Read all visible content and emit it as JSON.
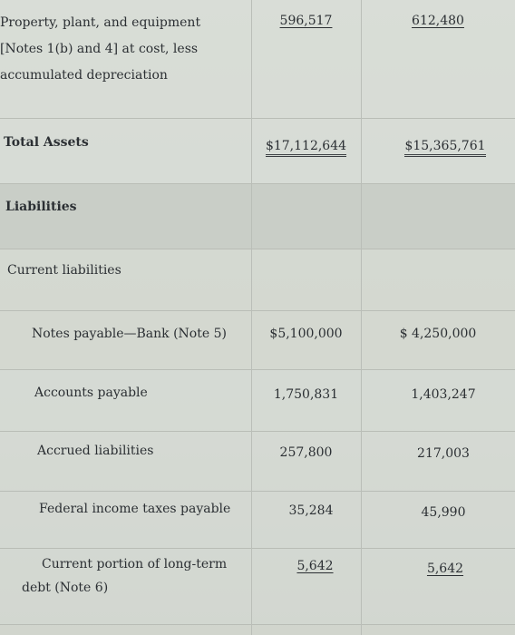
{
  "rows": {
    "ppe": {
      "label_lines": [
        "Property, plant, and equipment",
        "[Notes 1(b) and 4] at cost, less",
        "accumulated depreciation"
      ],
      "current": "596,517",
      "prior": "612,480"
    },
    "total_assets": {
      "label": "Total Assets",
      "current": "$17,112,644",
      "prior": "$15,365,761"
    },
    "liabilities": {
      "label": "Liabilities"
    },
    "current_liabilities": {
      "label": "Current liabilities"
    },
    "notes_payable": {
      "label": "Notes payable—Bank (Note 5)",
      "current": "$5,100,000",
      "prior": "$ 4,250,000"
    },
    "accounts_payable": {
      "label": "Accounts payable",
      "current": "1,750,831",
      "prior": "1,403,247"
    },
    "accrued_liabilities": {
      "label": "Accrued liabilities",
      "current": "257,800",
      "prior": "217,003"
    },
    "federal_income_taxes": {
      "label": "Federal income taxes payable",
      "current": "35,284",
      "prior": "45,990"
    },
    "current_ltd": {
      "label_lines": [
        "Current portion of long-term",
        "debt (Note 6)"
      ],
      "current": "5,642",
      "prior": "5,642"
    }
  }
}
